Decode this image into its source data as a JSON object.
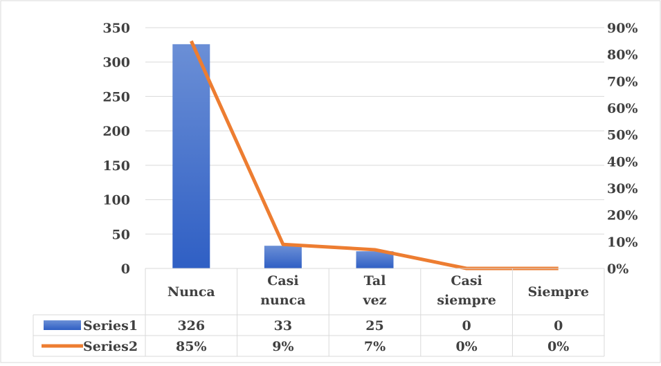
{
  "chart_data": {
    "type": "bar",
    "categories": [
      "Nunca",
      "Casi nunca",
      "Tal vez",
      "Casi siempre",
      "Siempre"
    ],
    "series": [
      {
        "name": "Series1",
        "type": "bar",
        "axis": "left",
        "values": [
          326,
          33,
          25,
          0,
          0
        ],
        "labels": [
          "326",
          "33",
          "25",
          "0",
          "0"
        ],
        "color": "#4472C4"
      },
      {
        "name": "Series2",
        "type": "line",
        "axis": "right",
        "values": [
          0.85,
          0.09,
          0.07,
          0.0,
          0.0
        ],
        "labels": [
          "85%",
          "9%",
          "7%",
          "0%",
          "0%"
        ],
        "color": "#ED7D31"
      }
    ],
    "y_left": {
      "ticks": [
        0,
        50,
        100,
        150,
        200,
        250,
        300,
        350
      ],
      "ylim": [
        0,
        350
      ]
    },
    "y_right": {
      "ticks": [
        "0%",
        "10%",
        "20%",
        "30%",
        "40%",
        "50%",
        "60%",
        "70%",
        "80%",
        "90%"
      ],
      "ylim": [
        0,
        0.9
      ]
    },
    "grid": true,
    "legend": "data-table",
    "data_table": true,
    "title": "",
    "xlabel": "",
    "ylabel": ""
  }
}
